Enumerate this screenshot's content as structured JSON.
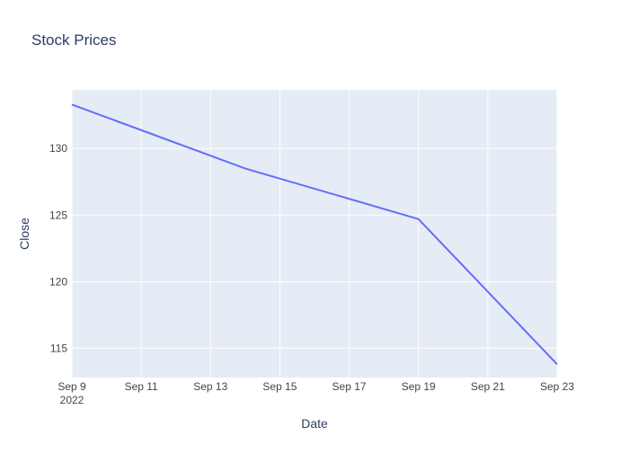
{
  "chart_data": {
    "type": "line",
    "title": "Stock Prices",
    "xlabel": "Date",
    "ylabel": "Close",
    "x_axis": {
      "type": "date",
      "range": [
        "2022-09-09",
        "2022-09-23"
      ],
      "ticks": [
        {
          "date": "2022-09-09",
          "label": "Sep 9",
          "sublabel": "2022"
        },
        {
          "date": "2022-09-11",
          "label": "Sep 11"
        },
        {
          "date": "2022-09-13",
          "label": "Sep 13"
        },
        {
          "date": "2022-09-15",
          "label": "Sep 15"
        },
        {
          "date": "2022-09-17",
          "label": "Sep 17"
        },
        {
          "date": "2022-09-19",
          "label": "Sep 19"
        },
        {
          "date": "2022-09-21",
          "label": "Sep 21"
        },
        {
          "date": "2022-09-23",
          "label": "Sep 23"
        }
      ]
    },
    "y_axis": {
      "range": [
        112.8,
        134.4
      ],
      "ticks": [
        115,
        120,
        125,
        130
      ]
    },
    "grid": true,
    "series": [
      {
        "color": "#636efa",
        "points": [
          {
            "x": "2022-09-09",
            "y": 133.3
          },
          {
            "x": "2022-09-14",
            "y": 128.5
          },
          {
            "x": "2022-09-19",
            "y": 124.7
          },
          {
            "x": "2022-09-23",
            "y": 113.8
          }
        ]
      }
    ],
    "colors": {
      "plot_background": "#e5ecf6",
      "gridline": "#ffffff",
      "text": "#2a3f5f",
      "tick_text": "#444444"
    }
  }
}
